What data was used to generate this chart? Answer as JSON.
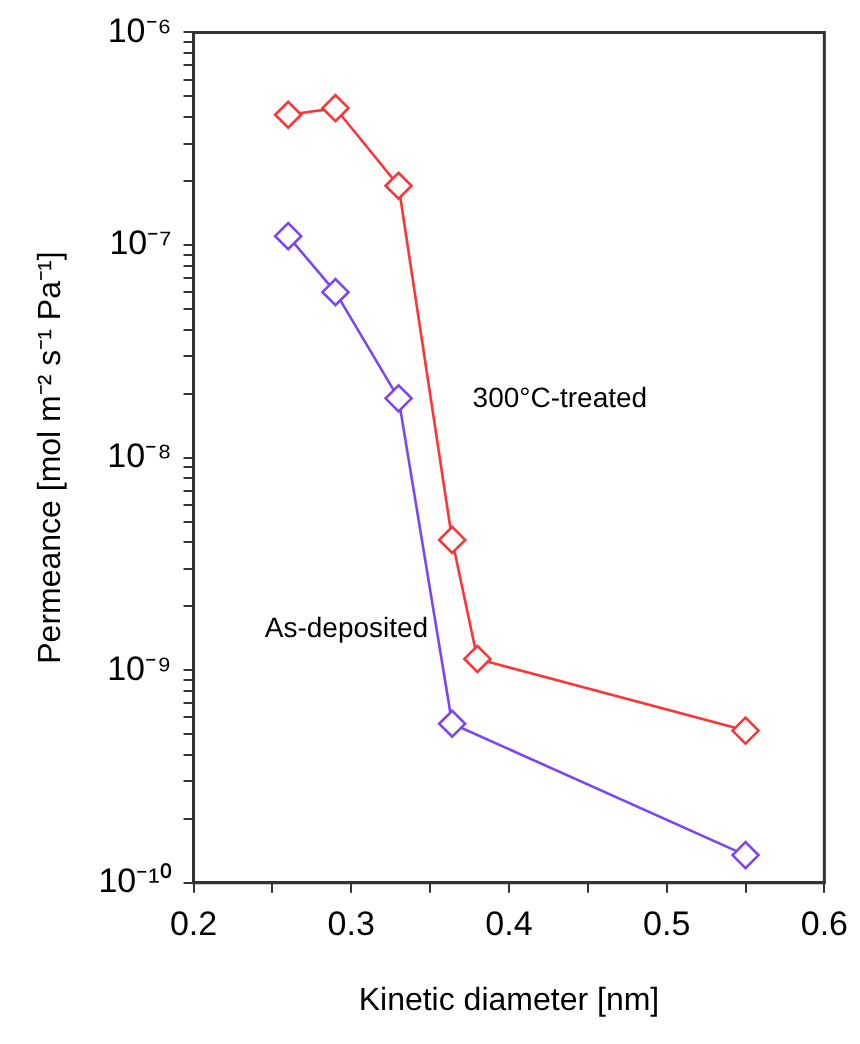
{
  "chart_data": {
    "type": "line",
    "xlabel": "Kinetic diameter [nm]",
    "ylabel": "Permeance [mol m⁻² s⁻¹ Pa⁻¹]",
    "series": [
      {
        "name": "300°C-treated",
        "color": "#ff3333",
        "x": [
          0.26,
          0.29,
          0.33,
          0.364,
          0.38,
          0.55
        ],
        "values": [
          4.1e-07,
          4.4e-07,
          1.9e-07,
          4.1e-09,
          1.13e-09,
          5.2e-10
        ]
      },
      {
        "name": "As-deposited",
        "color": "#7b45f5",
        "x": [
          0.26,
          0.29,
          0.33,
          0.364,
          0.55
        ],
        "values": [
          1.1e-07,
          6e-08,
          1.9e-08,
          5.6e-10,
          1.35e-10
        ]
      }
    ],
    "xlim": [
      0.2,
      0.6
    ],
    "xticks": [
      0.2,
      {
        "value": 0.25,
        "label": null
      },
      0.3,
      {
        "value": 0.35,
        "label": null
      },
      0.4,
      {
        "value": 0.45,
        "label": null
      },
      0.5,
      {
        "value": 0.55,
        "label": null
      },
      0.6
    ],
    "ylim": [
      1e-10,
      1e-06
    ],
    "yticks": [
      {
        "value": 1e-10,
        "label": "10⁻¹⁰"
      },
      {
        "value": 2e-10,
        "label": null
      },
      {
        "value": 3e-10,
        "label": null
      },
      {
        "value": 4e-10,
        "label": null
      },
      {
        "value": 5e-10,
        "label": null
      },
      {
        "value": 6e-10,
        "label": null
      },
      {
        "value": 7e-10,
        "label": null
      },
      {
        "value": 8e-10,
        "label": null
      },
      {
        "value": 9e-10,
        "label": null
      },
      {
        "value": 1e-09,
        "label": "10⁻⁹"
      },
      {
        "value": 2e-09,
        "label": null
      },
      {
        "value": 3e-09,
        "label": null
      },
      {
        "value": 4e-09,
        "label": null
      },
      {
        "value": 5e-09,
        "label": null
      },
      {
        "value": 6e-09,
        "label": null
      },
      {
        "value": 7e-09,
        "label": null
      },
      {
        "value": 8e-09,
        "label": null
      },
      {
        "value": 9e-09,
        "label": null
      },
      {
        "value": 1e-08,
        "label": "10⁻⁸"
      },
      {
        "value": 2e-08,
        "label": null
      },
      {
        "value": 3e-08,
        "label": null
      },
      {
        "value": 4e-08,
        "label": null
      },
      {
        "value": 5e-08,
        "label": null
      },
      {
        "value": 6e-08,
        "label": null
      },
      {
        "value": 7e-08,
        "label": null
      },
      {
        "value": 8e-08,
        "label": null
      },
      {
        "value": 9e-08,
        "label": null
      },
      {
        "value": 1e-07,
        "label": "10⁻⁷"
      },
      {
        "value": 2e-07,
        "label": null
      },
      {
        "value": 3e-07,
        "label": null
      },
      {
        "value": 4e-07,
        "label": null
      },
      {
        "value": 5e-07,
        "label": null
      },
      {
        "value": 6e-07,
        "label": null
      },
      {
        "value": 7e-07,
        "label": null
      },
      {
        "value": 8e-07,
        "label": null
      },
      {
        "value": 9e-07,
        "label": null
      },
      {
        "value": 1e-06,
        "label": "10⁻⁶"
      }
    ],
    "log": "y",
    "grid": false,
    "legend": false,
    "marker": "diamond",
    "line_style": "solid"
  }
}
